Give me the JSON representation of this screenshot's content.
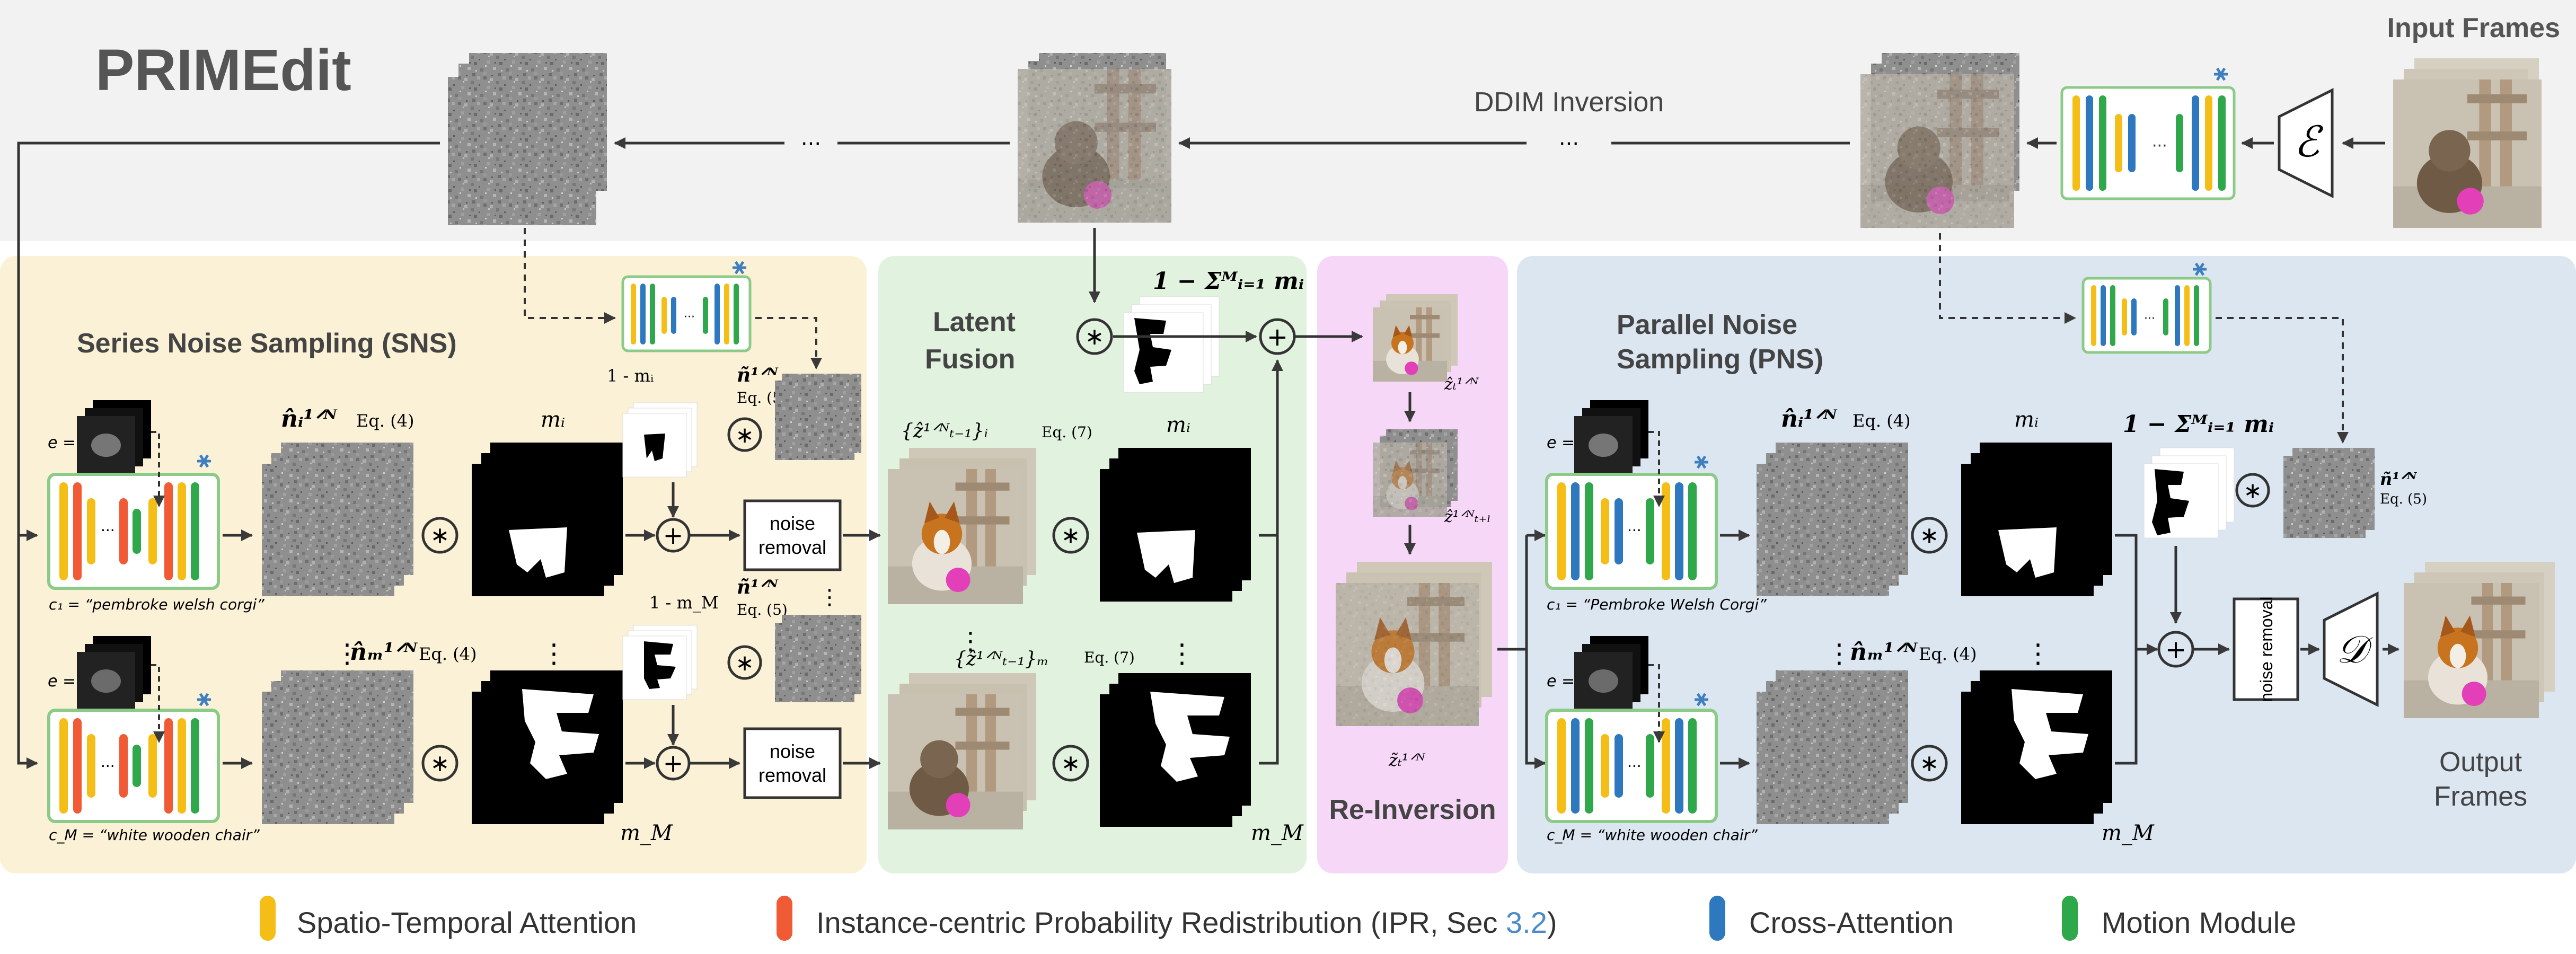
{
  "title": "PRIMEdit",
  "top": {
    "input_frames": "Input Frames",
    "ddim_inversion": "DDIM Inversion",
    "ellipsis": "···",
    "encoder_symbol": "ℰ"
  },
  "panels": {
    "sns": "Series Noise Sampling (SNS)",
    "latent_fusion_l1": "Latent",
    "latent_fusion_l2": "Fusion",
    "reinversion": "Re-Inversion",
    "pns_l1": "Parallel Noise",
    "pns_l2": "Sampling (PNS)",
    "output_l1": "Output",
    "output_l2": "Frames"
  },
  "labels": {
    "e_eq": "e =",
    "c1": "c₁ = “pembroke welsh corgi”",
    "cM": "c_M = “white wooden chair”",
    "c1_pns": "c₁ = “Pembroke Welsh Corgi”",
    "cM_pns": "c_M = “white wooden chair”",
    "n_i": "n̂ᵢ¹ᐟᴺ",
    "n_M": "n̂ₘ¹ᐟᴺ",
    "eq4": "Eq. (4)",
    "eq5": "Eq. (5)",
    "eq7": "Eq. (7)",
    "m_i": "mᵢ",
    "m_M": "m_M",
    "one_minus_mi": "1 - mᵢ",
    "one_minus_mM": "1 - m_M",
    "n_tilde": "ñ¹ᐟᴺ",
    "noise_removal_l1": "noise",
    "noise_removal_l2": "removal",
    "noise_removal_v": "noise removal",
    "z_i": "{ẑ¹ᐟᴺₜ₋₁}ᵢ",
    "z_M": "{ẑ¹ᐟᴺₜ₋₁}ₘ",
    "fusion_formula": "1 − Σᴹᵢ₌₁ mᵢ",
    "z_hat": "ẑₜ¹ᐟᴺ",
    "z_hat_tl": "ẑ¹ᐟᴺₜ₊ₗ",
    "z_tilde": "z̃ₜ¹ᐟᴺ",
    "decoder_symbol": "𝒟",
    "vdots": "⋮"
  },
  "legend": [
    {
      "label": "Spatio-Temporal Attention",
      "color": "#F5BE17"
    },
    {
      "label": "Instance-centric Probability Redistribution (IPR, Sec ",
      "ref": "3.2",
      "suffix": ")",
      "color": "#F05A34"
    },
    {
      "label": "Cross-Attention",
      "color": "#2E78C0"
    },
    {
      "label": "Motion Module",
      "color": "#2EA84A"
    }
  ],
  "colors": {
    "top_band": "#F2F2F2",
    "sns_bg": "#FBF1D6",
    "fusion_bg": "#E1F2DF",
    "reinv_bg": "#F6D7F7",
    "pns_bg": "#DCE6F1",
    "unet_border": "#8CCB87",
    "snowflake": "#3F7FBF",
    "ref_blue": "#4B8BC8"
  }
}
